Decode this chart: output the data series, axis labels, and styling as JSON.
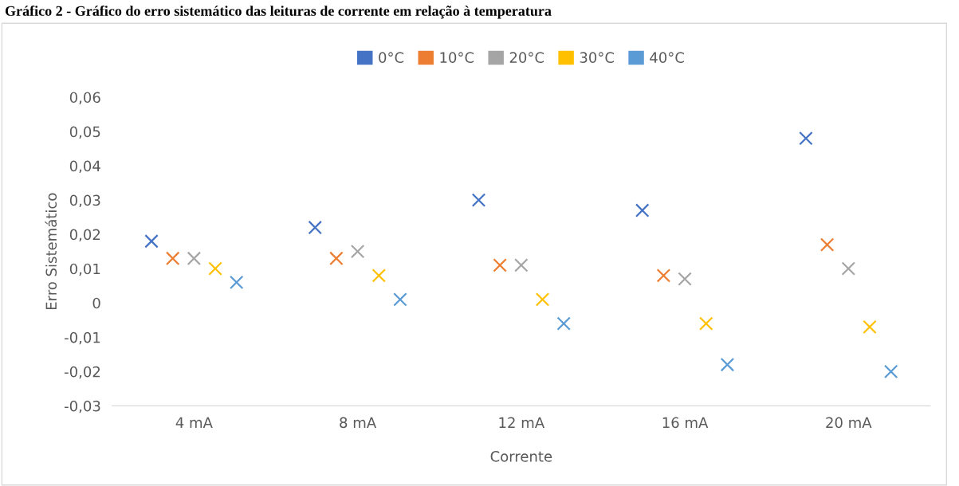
{
  "chart_data": {
    "type": "scatter",
    "title": "Gráfico 2 - Gráfico do erro sistemático das leituras de corrente em relação à temperatura",
    "xlabel": "Corrente",
    "ylabel": "Erro Sistemático",
    "categories": [
      "4 mA",
      "8 mA",
      "12 mA",
      "16 mA",
      "20 mA"
    ],
    "series": [
      {
        "name": "0°C",
        "color": "#4472c4",
        "values": [
          0.018,
          0.022,
          0.03,
          0.027,
          0.048
        ]
      },
      {
        "name": "10°C",
        "color": "#ed7d31",
        "values": [
          0.013,
          0.013,
          0.011,
          0.008,
          0.017
        ]
      },
      {
        "name": "20°C",
        "color": "#a5a5a5",
        "values": [
          0.013,
          0.015,
          0.011,
          0.007,
          0.01
        ]
      },
      {
        "name": "30°C",
        "color": "#ffc000",
        "values": [
          0.01,
          0.008,
          0.001,
          -0.006,
          -0.007
        ]
      },
      {
        "name": "40°C",
        "color": "#5b9bd5",
        "values": [
          0.006,
          0.001,
          -0.006,
          -0.018,
          -0.02
        ]
      }
    ],
    "ylim": [
      -0.03,
      0.06
    ],
    "yticks": [
      {
        "value": -0.03,
        "label": "-0,03"
      },
      {
        "value": -0.02,
        "label": "-0,02"
      },
      {
        "value": -0.01,
        "label": "-0,01"
      },
      0,
      {
        "value": 0.01,
        "label": "0,01"
      },
      {
        "value": 0.02,
        "label": "0,02"
      },
      {
        "value": 0.03,
        "label": "0,03"
      },
      {
        "value": 0.04,
        "label": "0,04"
      },
      {
        "value": 0.05,
        "label": "0,05"
      },
      {
        "value": 0.06,
        "label": "0,06"
      }
    ],
    "grid": false,
    "legend": "top",
    "marker": "cross"
  }
}
